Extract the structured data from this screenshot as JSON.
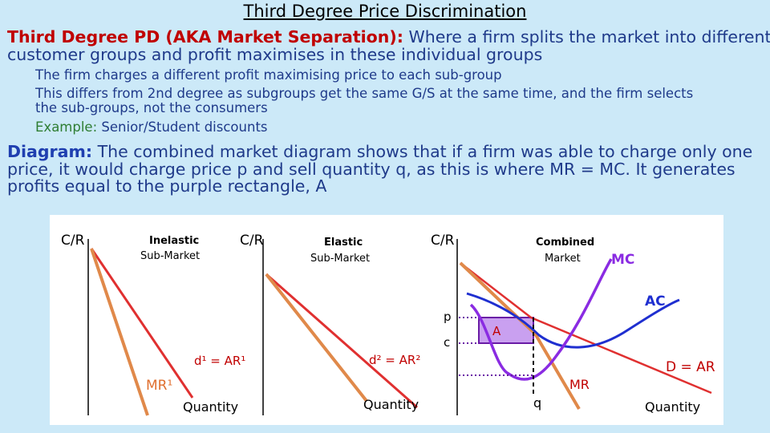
{
  "title": "Third Degree Price Discrimination",
  "definition": {
    "heading": "Third Degree PD (AKA Market Separation):",
    "line1": " Where a firm splits the market into different",
    "line2": "customer groups and profit maximises in these individual groups"
  },
  "points": {
    "p1": "The firm charges a different profit maximising price to each sub-group",
    "p2a": "This differs from 2nd degree as subgroups get the same G/S at the same time, and the firm selects",
    "p2b": "the sub-groups, not the consumers",
    "example_label": "Example:",
    "example_text": " Senior/Student discounts"
  },
  "diagram_text": {
    "heading": "Diagram:",
    "line1": " The combined market diagram shows that if a firm was able to charge only one",
    "line2": "price, it would charge price p and sell quantity q, as this is where MR = MC. It generates",
    "line3": "profits equal to the purple rectangle, A"
  },
  "diagram": {
    "panel1": {
      "yaxis": "C/R",
      "title": "Inelastic",
      "subtitle": "Sub-Market",
      "demand": "d¹ = AR¹",
      "mr": "MR¹",
      "xaxis": "Quantity"
    },
    "panel2": {
      "yaxis": "C/R",
      "title": "Elastic",
      "subtitle": "Sub-Market",
      "demand": "d² = AR²",
      "xaxis": "Quantity"
    },
    "panel3": {
      "yaxis": "C/R",
      "title": "Combined",
      "subtitle": "Market",
      "mc": "MC",
      "ac": "AC",
      "p": "p",
      "c": "c",
      "area": "A",
      "mr": "MR",
      "q": "q",
      "demand": "D = AR",
      "xaxis": "Quantity"
    },
    "colors": {
      "orange": "#e0894a",
      "red": "#e03030",
      "purple": "#8a2be2",
      "blue": "#1f2fd0",
      "shade": "#c9a0f0",
      "text_red": "#c00000"
    }
  }
}
